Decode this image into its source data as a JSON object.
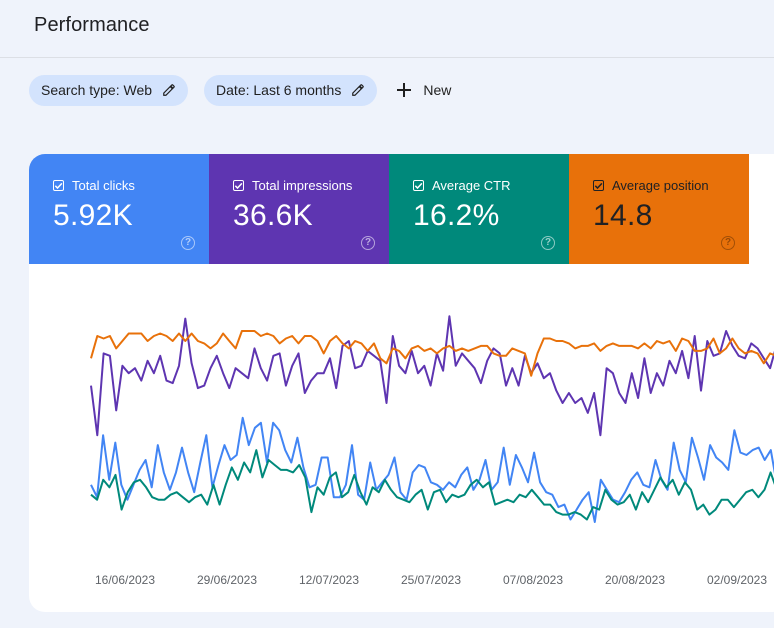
{
  "header": {
    "title": "Performance"
  },
  "filters": {
    "search_type": "Search type: Web",
    "date": "Date: Last 6 months",
    "new_label": "New"
  },
  "metrics": [
    {
      "label": "Total clicks",
      "value": "5.92K",
      "color": "#4285f4",
      "text": "light"
    },
    {
      "label": "Total impressions",
      "value": "36.6K",
      "color": "#5e35b1",
      "text": "light"
    },
    {
      "label": "Average CTR",
      "value": "16.2%",
      "color": "#00897b",
      "text": "light"
    },
    {
      "label": "Average position",
      "value": "14.8",
      "color": "#e8710a",
      "text": "dark"
    }
  ],
  "chart_data": {
    "type": "line",
    "title": "",
    "xlabel": "",
    "ylabel": "",
    "x_tick_labels": [
      "16/06/2023",
      "29/06/2023",
      "12/07/2023",
      "25/07/2023",
      "07/08/2023",
      "20/08/2023",
      "02/09/2023"
    ],
    "ylim": [
      0,
      100
    ],
    "series": [
      {
        "name": "Total impressions",
        "color": "#5e35b1",
        "values": [
          55,
          35,
          68,
          67,
          45,
          63,
          60,
          62,
          57,
          65,
          60,
          67,
          57,
          56,
          63,
          82,
          64,
          54,
          55,
          62,
          67,
          60,
          54,
          62,
          60,
          58,
          70,
          62,
          57,
          67,
          68,
          55,
          63,
          68,
          52,
          57,
          60,
          60,
          66,
          54,
          71,
          73,
          62,
          63,
          69,
          67,
          65,
          48,
          75,
          63,
          60,
          69,
          60,
          63,
          55,
          68,
          61,
          83,
          63,
          68,
          65,
          62,
          56,
          65,
          70,
          68,
          55,
          62,
          55,
          67,
          60,
          64,
          58,
          60,
          53,
          48,
          52,
          48,
          50,
          44,
          52,
          35,
          62,
          60,
          52,
          48,
          60,
          50,
          66,
          52,
          60,
          55,
          65,
          60,
          69,
          58,
          75,
          53,
          73,
          67,
          68,
          77,
          71,
          67,
          66,
          72,
          70,
          66,
          62,
          71,
          50,
          73
        ]
      },
      {
        "name": "Average position",
        "color": "#e8710a",
        "values": [
          66,
          75,
          74,
          75,
          70,
          73,
          76,
          76,
          76,
          73,
          75,
          76,
          75,
          73,
          76,
          73,
          76,
          73,
          72,
          70,
          72,
          76,
          73,
          70,
          77,
          77,
          77,
          75,
          76,
          75,
          72,
          74,
          75,
          72,
          75,
          75,
          73,
          68,
          73,
          75,
          72,
          70,
          73,
          72,
          69,
          72,
          66,
          64,
          70,
          69,
          66,
          70,
          71,
          69,
          70,
          68,
          70,
          71,
          69,
          70,
          69,
          70,
          71,
          71,
          68,
          67,
          67,
          70,
          69,
          68,
          59,
          68,
          74,
          74,
          73,
          73,
          72,
          70,
          71,
          71,
          72,
          69,
          71,
          72,
          71,
          71,
          71,
          70,
          72,
          70,
          73,
          72,
          73,
          69,
          74,
          73,
          69,
          69,
          70,
          74,
          68,
          70,
          74,
          70,
          68,
          69,
          68,
          64,
          68,
          67,
          62,
          62
        ]
      },
      {
        "name": "Total clicks",
        "color": "#4285f4",
        "values": [
          15,
          10,
          35,
          17,
          32,
          15,
          9,
          15,
          21,
          25,
          14,
          31,
          20,
          13,
          20,
          30,
          20,
          12,
          24,
          35,
          14,
          23,
          31,
          25,
          27,
          42,
          31,
          38,
          40,
          24,
          40,
          37,
          29,
          24,
          34,
          22,
          14,
          15,
          26,
          26,
          10,
          10,
          15,
          31,
          11,
          9,
          24,
          13,
          16,
          19,
          26,
          12,
          9,
          20,
          23,
          22,
          16,
          15,
          13,
          16,
          14,
          19,
          22,
          13,
          17,
          25,
          13,
          16,
          30,
          15,
          27,
          22,
          16,
          28,
          16,
          12,
          11,
          6,
          7,
          1,
          5,
          9,
          12,
          0,
          17,
          13,
          9,
          8,
          12,
          17,
          20,
          15,
          14,
          25,
          17,
          13,
          32,
          21,
          16,
          34,
          26,
          17,
          31,
          26,
          24,
          21,
          37,
          28,
          27,
          29,
          30,
          25,
          29,
          15,
          41,
          26
        ]
      },
      {
        "name": "Average CTR",
        "color": "#00897b",
        "values": [
          11,
          9,
          17,
          14,
          19,
          5,
          12,
          16,
          17,
          14,
          10,
          9,
          9,
          11,
          12,
          10,
          8,
          10,
          11,
          7,
          15,
          7,
          15,
          22,
          17,
          24,
          20,
          29,
          18,
          25,
          23,
          21,
          21,
          20,
          23,
          18,
          4,
          14,
          11,
          18,
          20,
          10,
          12,
          19,
          12,
          7,
          14,
          12,
          17,
          13,
          10,
          9,
          8,
          11,
          13,
          5,
          12,
          13,
          8,
          11,
          10,
          11,
          15,
          17,
          14,
          16,
          7,
          8,
          9,
          8,
          11,
          10,
          13,
          10,
          7,
          7,
          4,
          3,
          3,
          4,
          3,
          1,
          6,
          5,
          13,
          9,
          7,
          8,
          11,
          5,
          12,
          8,
          13,
          18,
          14,
          17,
          11,
          16,
          13,
          5,
          7,
          3,
          5,
          9,
          9,
          6,
          9,
          12,
          13,
          10,
          13,
          20,
          13,
          12,
          14
        ]
      }
    ]
  }
}
